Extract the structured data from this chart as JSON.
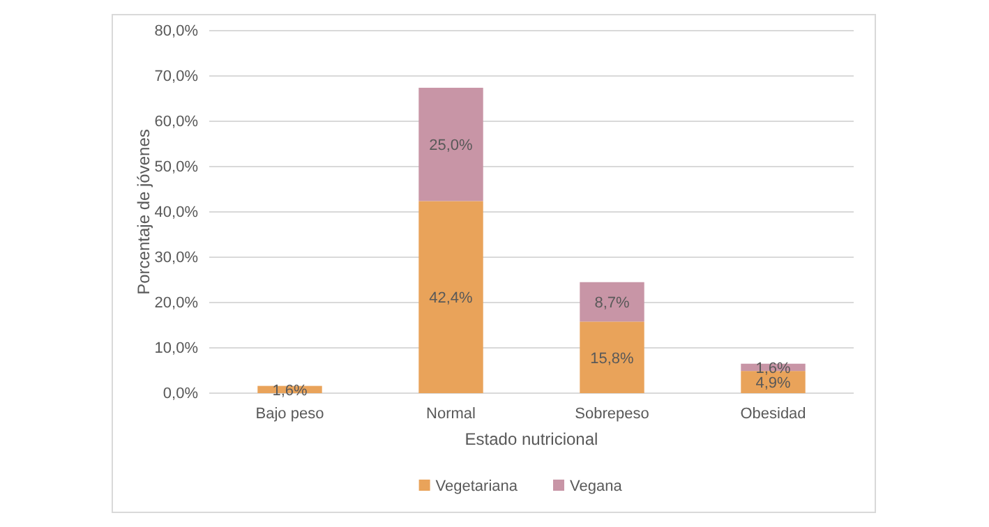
{
  "chart_data": {
    "type": "bar",
    "stacked": true,
    "xlabel": "Estado nutricional",
    "ylabel": "Porcentaje de jóvenes",
    "categories": [
      "Bajo peso",
      "Normal",
      "Sobrepeso",
      "Obesidad"
    ],
    "series": [
      {
        "name": "Vegetariana",
        "color": "#e9a35a",
        "values": [
          1.6,
          42.4,
          15.8,
          4.9
        ],
        "value_labels": [
          "1,6%",
          "42,4%",
          "15,8%",
          "4,9%"
        ]
      },
      {
        "name": "Vegana",
        "color": "#c895a6",
        "values": [
          null,
          25.0,
          8.7,
          1.6
        ],
        "value_labels": [
          null,
          "25,0%",
          "8,7%",
          "1,6%"
        ]
      }
    ],
    "ylim": [
      0,
      80
    ],
    "yticks": [
      {
        "value": 0,
        "label": "0,0%"
      },
      {
        "value": 10,
        "label": "10,0%"
      },
      {
        "value": 20,
        "label": "20,0%"
      },
      {
        "value": 30,
        "label": "30,0%"
      },
      {
        "value": 40,
        "label": "40,0%"
      },
      {
        "value": 50,
        "label": "50,0%"
      },
      {
        "value": 60,
        "label": "60,0%"
      },
      {
        "value": 70,
        "label": "70,0%"
      },
      {
        "value": 80,
        "label": "80,0%"
      }
    ],
    "grid": "y",
    "legend": "bottom"
  }
}
